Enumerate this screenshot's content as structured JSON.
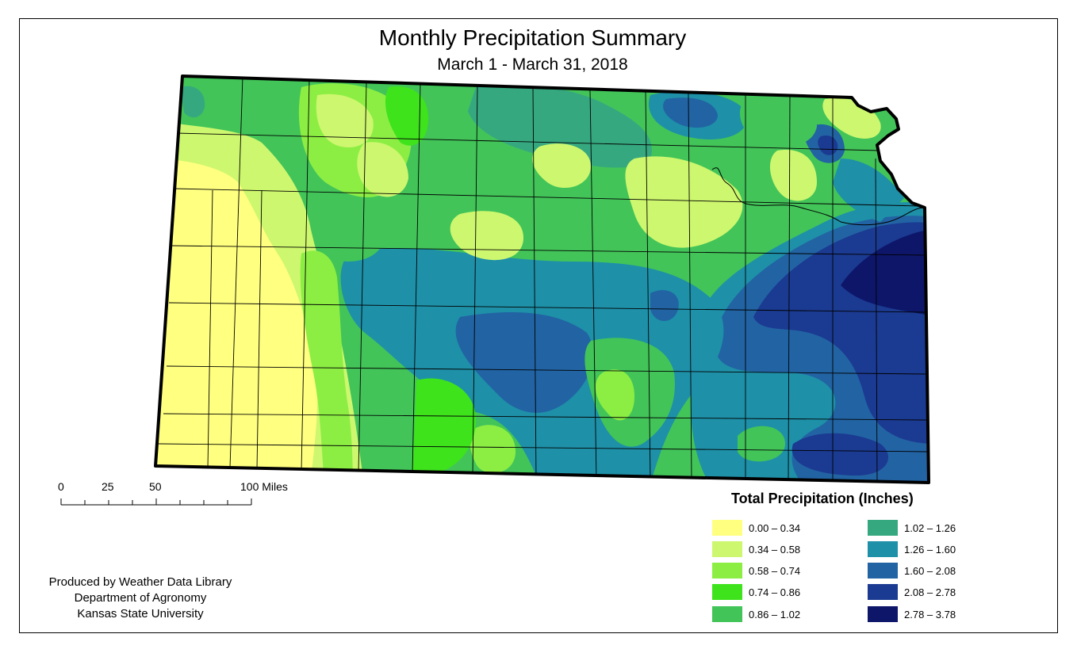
{
  "title": "Monthly Precipitation Summary",
  "subtitle": "March 1 - March 31, 2018",
  "scale_bar": {
    "ticks": [
      "0",
      "25",
      "50",
      "100 Miles"
    ]
  },
  "credits": [
    "Produced by Weather Data Library",
    "Department of Agronomy",
    "Kansas State University"
  ],
  "legend": {
    "title": "Total Precipitation (Inches)",
    "items": [
      {
        "label": "0.00 – 0.34",
        "color": "#ffff80"
      },
      {
        "label": "0.34 – 0.58",
        "color": "#cdf76e"
      },
      {
        "label": "0.58 – 0.74",
        "color": "#8cee43"
      },
      {
        "label": "0.74 – 0.86",
        "color": "#3ee31c"
      },
      {
        "label": "0.86 – 1.02",
        "color": "#42c459"
      },
      {
        "label": "1.02 – 1.26",
        "color": "#36a880"
      },
      {
        "label": "1.26 – 1.60",
        "color": "#1e90a8"
      },
      {
        "label": "1.60 – 2.08",
        "color": "#2263a3"
      },
      {
        "label": "2.08 – 2.78",
        "color": "#1b3a91"
      },
      {
        "label": "2.78 – 3.78",
        "color": "#0d1669"
      }
    ]
  }
}
